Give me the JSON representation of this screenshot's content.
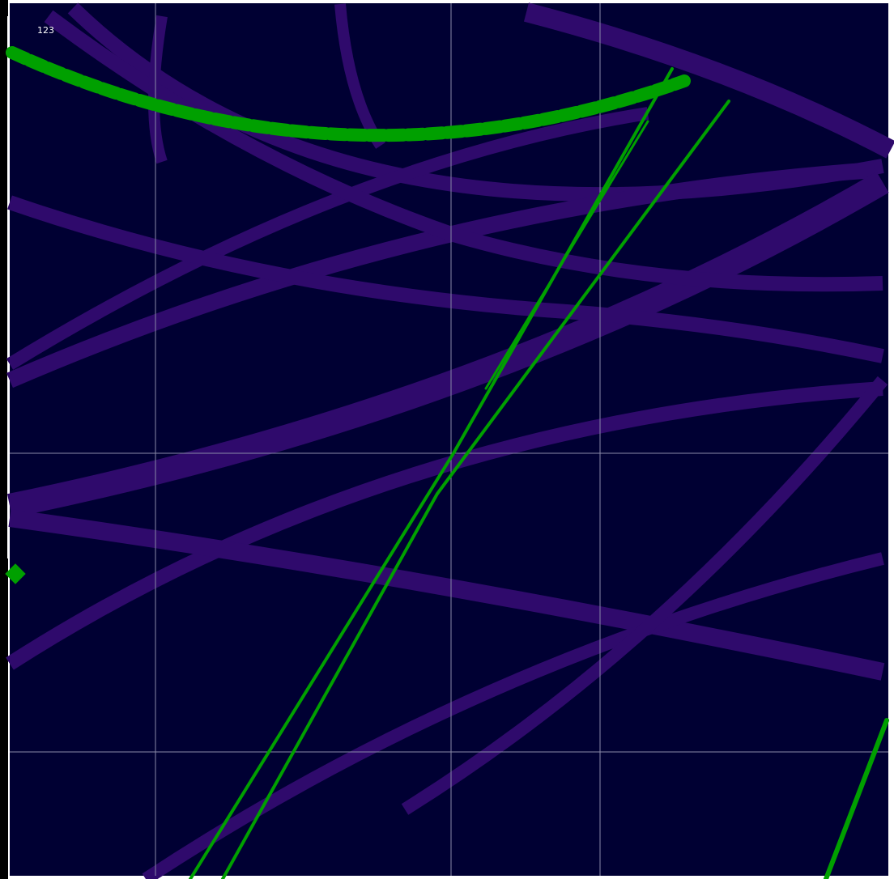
{
  "header": {
    "label": "123"
  }
}
